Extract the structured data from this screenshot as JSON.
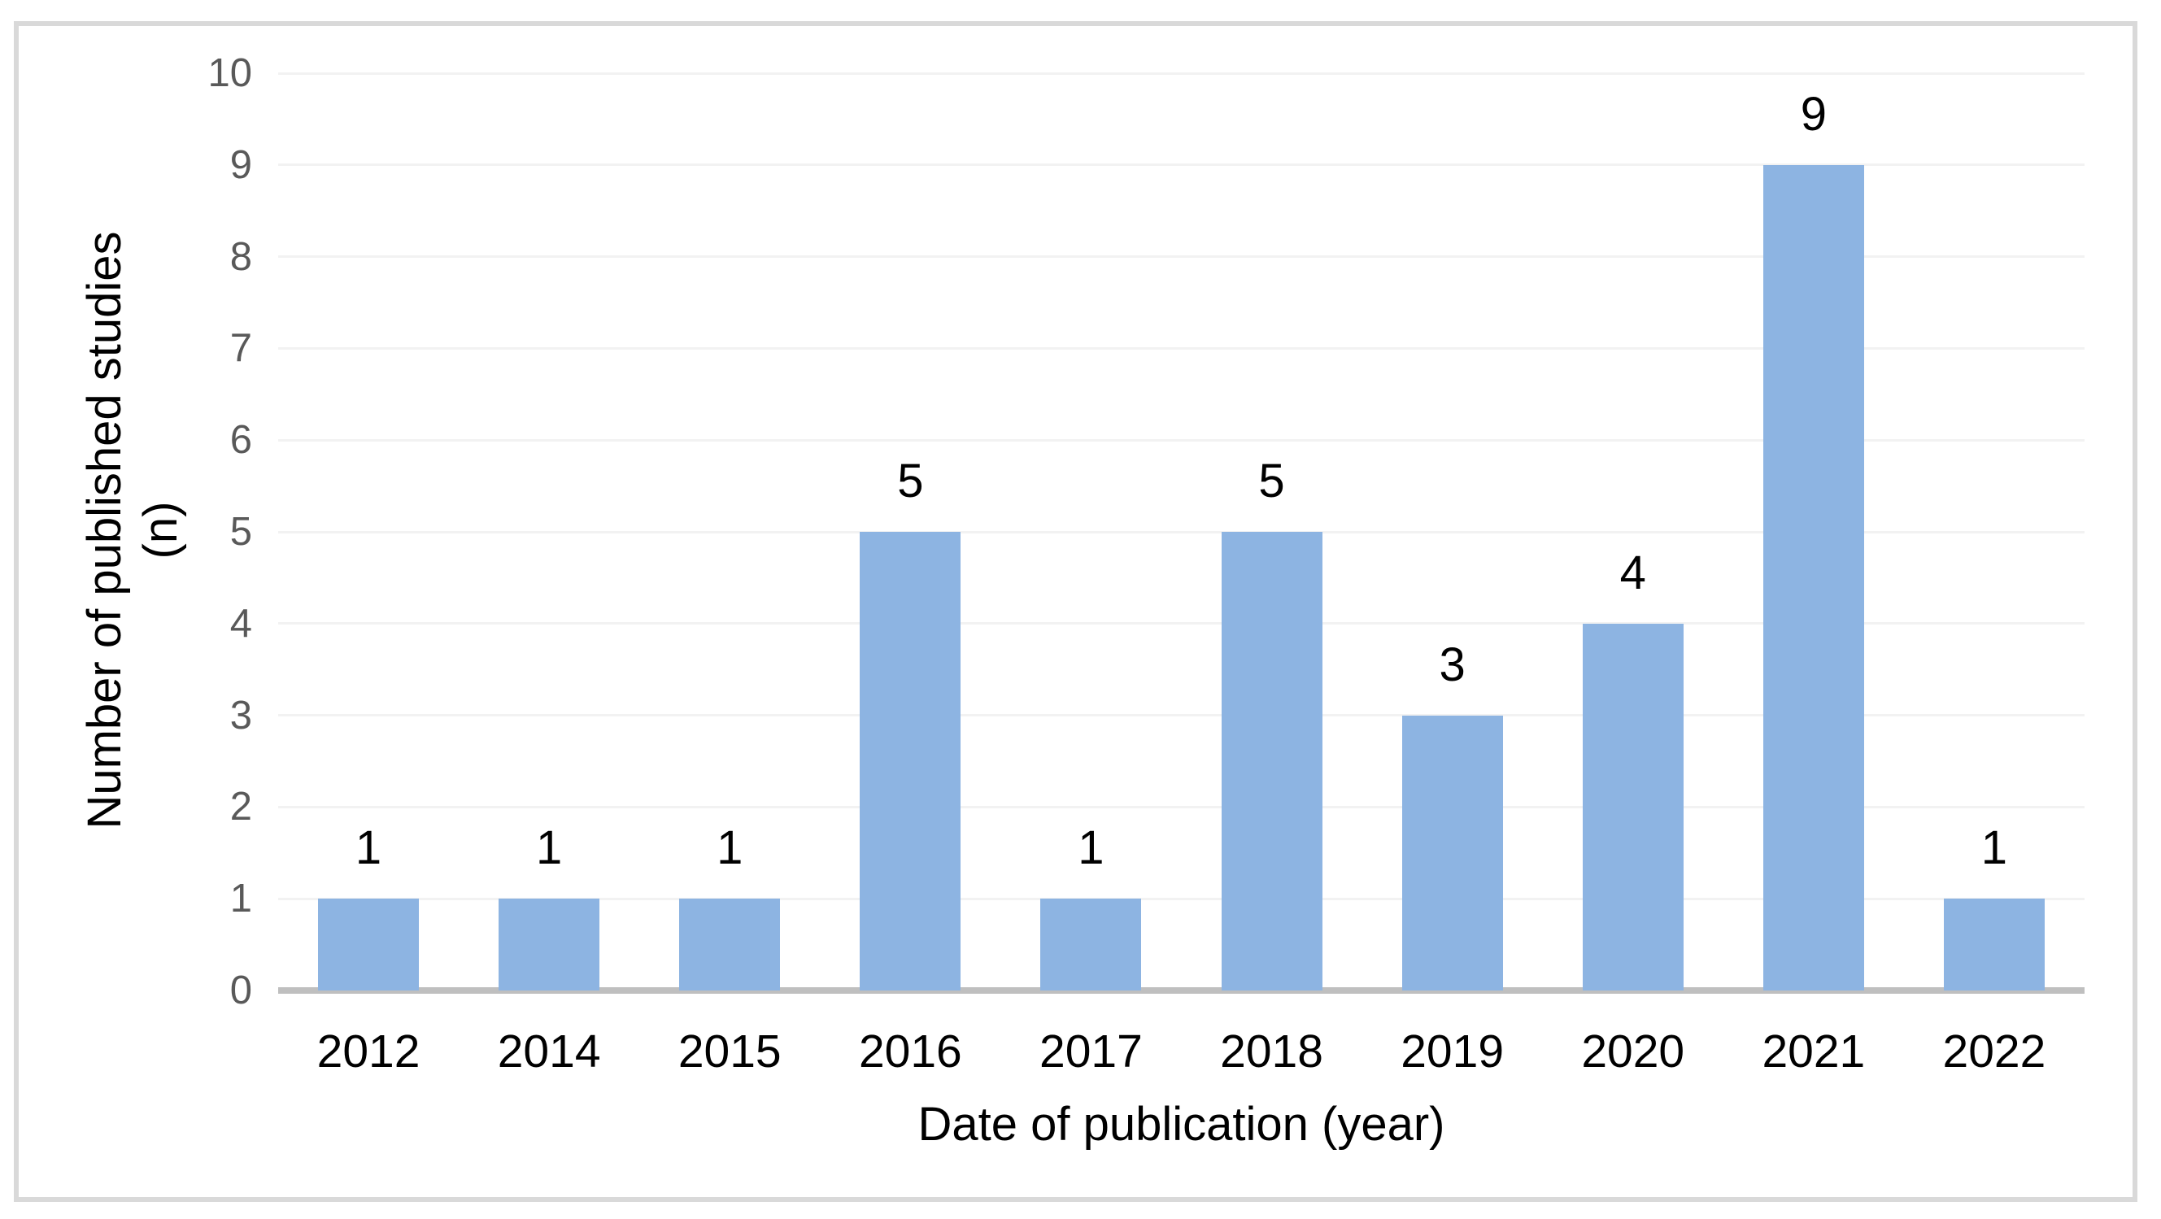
{
  "chart_data": {
    "type": "bar",
    "title": "",
    "categories": [
      "2012",
      "2014",
      "2015",
      "2016",
      "2017",
      "2018",
      "2019",
      "2020",
      "2021",
      "2022"
    ],
    "values": [
      1,
      1,
      1,
      5,
      1,
      5,
      3,
      4,
      9,
      1
    ],
    "xlabel": "Date of publication (year)",
    "ylabel_line1": "Number  of published studies",
    "ylabel_line2": "(n)",
    "ylim": [
      0,
      10
    ],
    "yticks": [
      0,
      1,
      2,
      3,
      4,
      5,
      6,
      7,
      8,
      9,
      10
    ],
    "grid": true,
    "legend": false,
    "data_labels": true,
    "colors": {
      "bar": "#8DB4E2",
      "gridline": "#F2F2F2",
      "axis_line": "#BFBFBF",
      "ytick_text": "#595959",
      "text": "#000000",
      "frame_border": "#D9D9D9",
      "background": "#FFFFFF"
    }
  }
}
